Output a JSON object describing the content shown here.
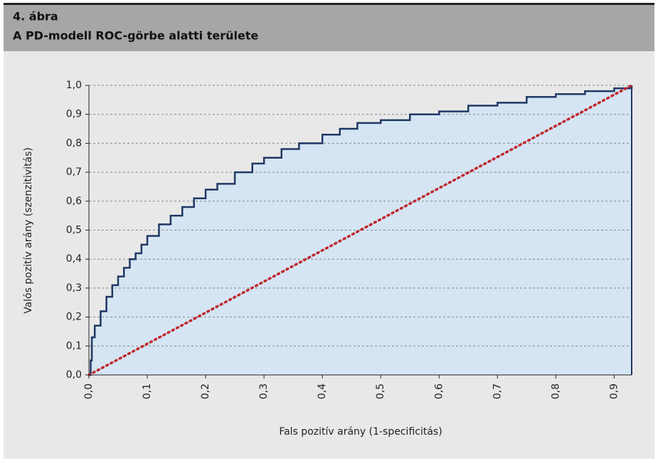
{
  "header": {
    "figure": "4. ábra",
    "title": "A PD-modell ROC-görbe alatti területe"
  },
  "chart_data": {
    "type": "line",
    "x_label": "Fals pozitív arány (1-specificitás)",
    "y_label": "Valós pozitív arány (szenzitivitás)",
    "xlim": [
      0,
      0.93
    ],
    "ylim": [
      0,
      1.0
    ],
    "xticks": [
      {
        "value": 0,
        "label": "0,0"
      },
      {
        "value": 0.1,
        "label": "0,1"
      },
      {
        "value": 0.2,
        "label": "0,2"
      },
      {
        "value": 0.3,
        "label": "0,3"
      },
      {
        "value": 0.4,
        "label": "0,4"
      },
      {
        "value": 0.5,
        "label": "0,5"
      },
      {
        "value": 0.6,
        "label": "0,6"
      },
      {
        "value": 0.7,
        "label": "0,7"
      },
      {
        "value": 0.8,
        "label": "0,8"
      },
      {
        "value": 0.9,
        "label": "0,9"
      }
    ],
    "yticks": [
      {
        "value": 0,
        "label": "0,0"
      },
      {
        "value": 0.1,
        "label": "0,1"
      },
      {
        "value": 0.2,
        "label": "0,2"
      },
      {
        "value": 0.3,
        "label": "0,3"
      },
      {
        "value": 0.4,
        "label": "0,4"
      },
      {
        "value": 0.5,
        "label": "0,5"
      },
      {
        "value": 0.6,
        "label": "0,6"
      },
      {
        "value": 0.7,
        "label": "0,7"
      },
      {
        "value": 0.8,
        "label": "0,8"
      },
      {
        "value": 0.9,
        "label": "0,9"
      },
      {
        "value": 1.0,
        "label": "1,0"
      }
    ],
    "grid": true,
    "series": [
      {
        "color": "#1f3864",
        "fill": "#d5e5f3",
        "step": true,
        "x": [
          0,
          0.003,
          0.005,
          0.01,
          0.02,
          0.03,
          0.04,
          0.05,
          0.06,
          0.07,
          0.08,
          0.09,
          0.1,
          0.12,
          0.14,
          0.16,
          0.18,
          0.2,
          0.22,
          0.25,
          0.28,
          0.3,
          0.33,
          0.36,
          0.4,
          0.43,
          0.46,
          0.5,
          0.55,
          0.6,
          0.65,
          0.7,
          0.75,
          0.8,
          0.85,
          0.9,
          0.93
        ],
        "values": [
          0,
          0.05,
          0.13,
          0.17,
          0.22,
          0.27,
          0.31,
          0.34,
          0.37,
          0.4,
          0.42,
          0.45,
          0.48,
          0.52,
          0.55,
          0.58,
          0.61,
          0.64,
          0.66,
          0.7,
          0.73,
          0.75,
          0.78,
          0.8,
          0.83,
          0.85,
          0.87,
          0.88,
          0.9,
          0.91,
          0.93,
          0.94,
          0.96,
          0.97,
          0.98,
          0.99,
          1.0
        ]
      },
      {
        "color": "#c0272d",
        "dotted": true,
        "x": [
          0,
          0.93
        ],
        "values": [
          0,
          1.0
        ]
      }
    ]
  }
}
